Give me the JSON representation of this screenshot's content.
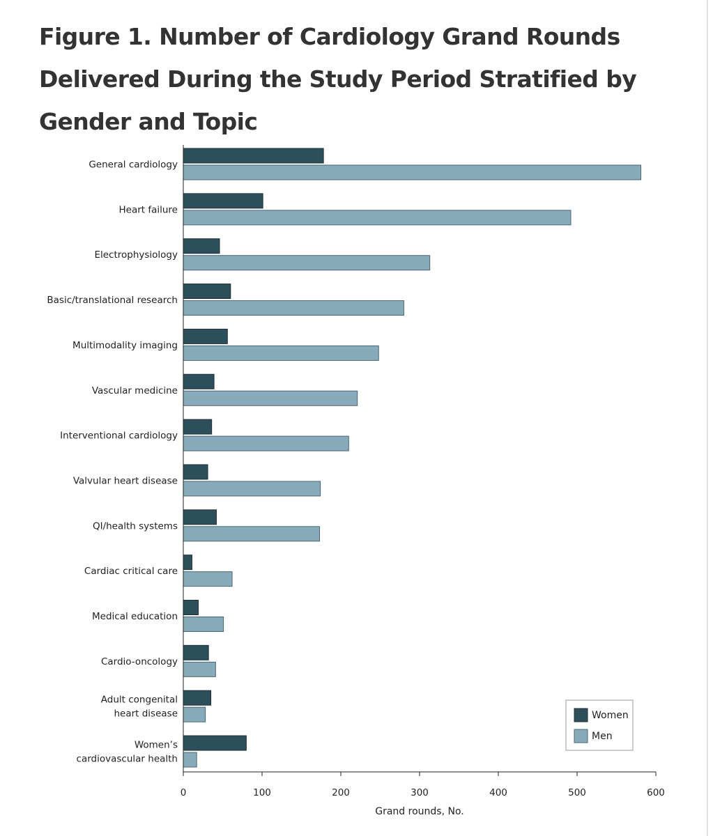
{
  "figure": {
    "title": "Figure 1.  Number of Cardiology Grand Rounds Delivered During the Study Period Stratified by Gender and Topic"
  },
  "chart_data": {
    "type": "bar",
    "orientation": "horizontal",
    "title": "Figure 1.  Number of Cardiology Grand Rounds Delivered During the Study Period Stratified by Gender and Topic",
    "xlabel": "Grand rounds, No.",
    "ylabel": "",
    "xlim": [
      0,
      600
    ],
    "xticks": [
      0,
      100,
      200,
      300,
      400,
      500,
      600
    ],
    "grid": false,
    "legend_position": "bottom-right",
    "categories": [
      "General cardiology",
      "Heart failure",
      "Electrophysiology",
      "Basic/translational research",
      "Multimodality imaging",
      "Vascular medicine",
      "Interventional cardiology",
      "Valvular heart disease",
      "QI/health systems",
      "Cardiac critical care",
      "Medical education",
      "Cardio-oncology",
      "Adult congenital heart disease",
      "Women's cardiovascular health"
    ],
    "category_lines": [
      [
        "General cardiology"
      ],
      [
        "Heart failure"
      ],
      [
        "Electrophysiology"
      ],
      [
        "Basic/translational research"
      ],
      [
        "Multimodality imaging"
      ],
      [
        "Vascular medicine"
      ],
      [
        "Interventional cardiology"
      ],
      [
        "Valvular heart disease"
      ],
      [
        "QI/health systems"
      ],
      [
        "Cardiac critical care"
      ],
      [
        "Medical education"
      ],
      [
        "Cardio-oncology"
      ],
      [
        "Adult congenital",
        "heart disease"
      ],
      [
        "Women’s",
        "cardiovascular health"
      ]
    ],
    "series": [
      {
        "name": "Women",
        "color": "#2d4f5c",
        "values": [
          178,
          101,
          46,
          60,
          56,
          39,
          36,
          31,
          42,
          11,
          19,
          32,
          35,
          80
        ]
      },
      {
        "name": "Men",
        "color": "#88abbb",
        "values": [
          581,
          492,
          313,
          280,
          248,
          221,
          210,
          174,
          173,
          62,
          51,
          41,
          28,
          17
        ]
      }
    ]
  }
}
